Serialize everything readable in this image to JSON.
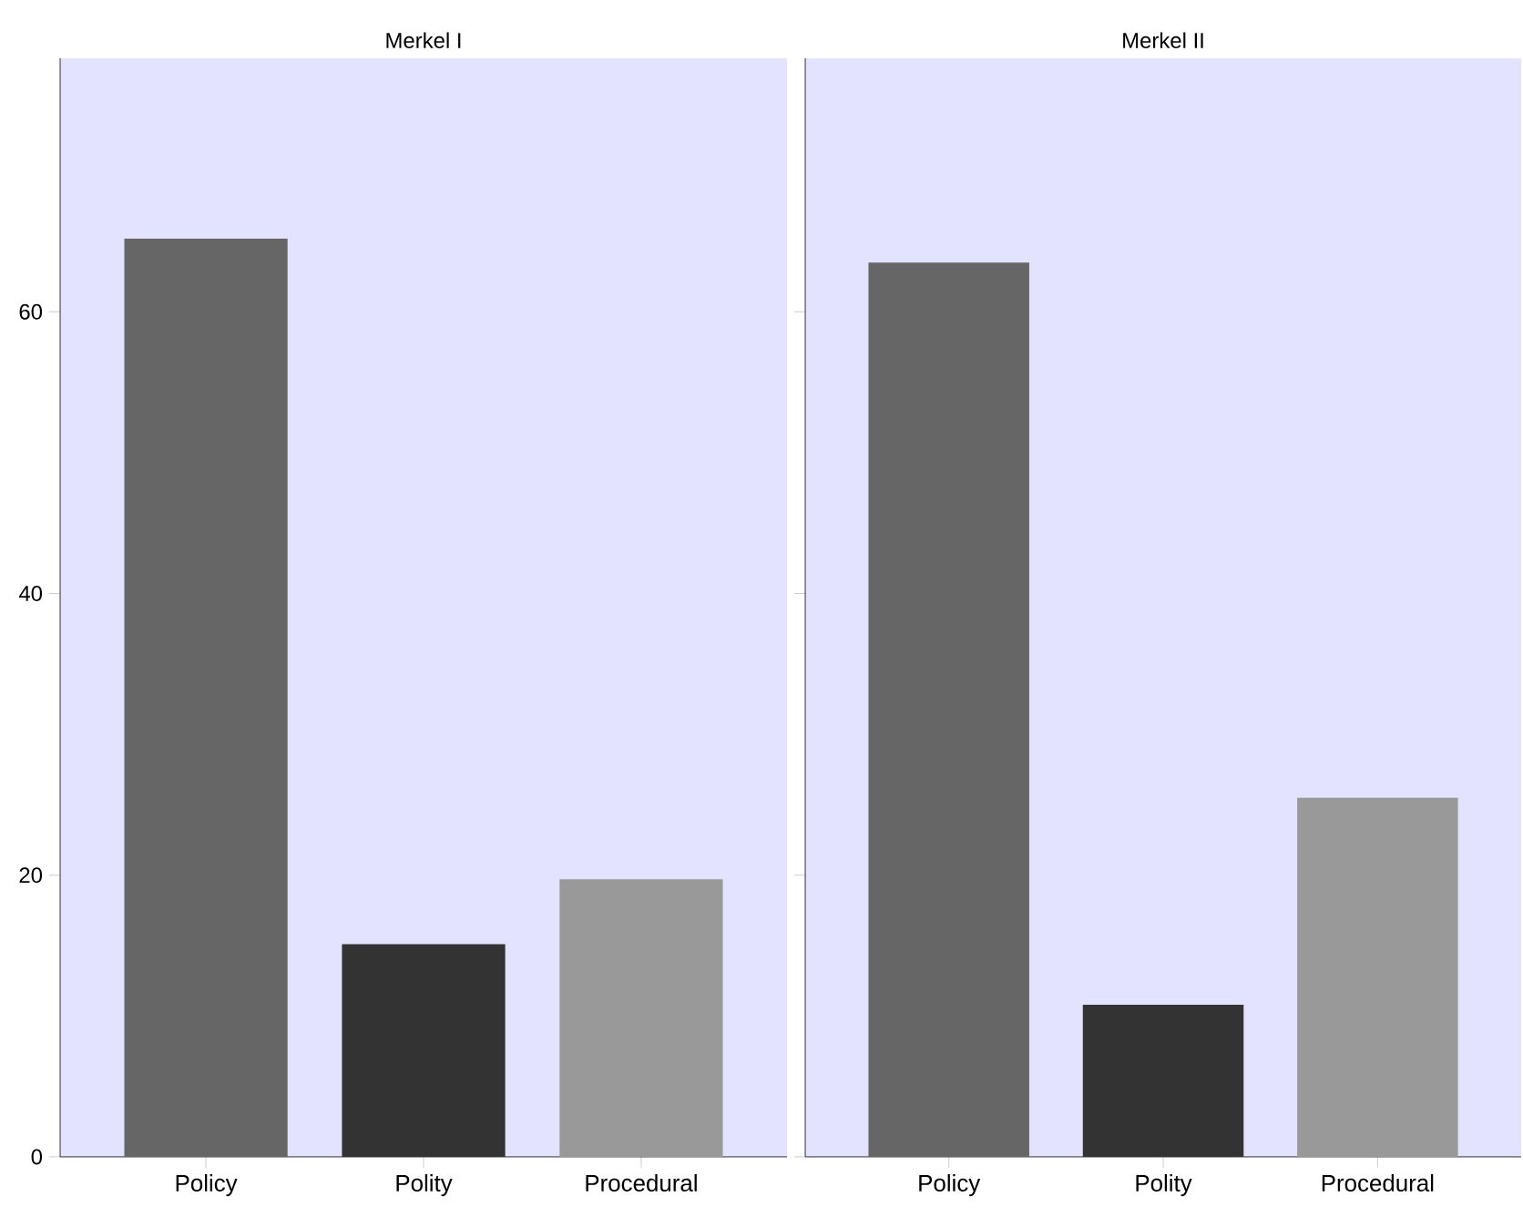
{
  "chart_data": [
    {
      "type": "bar",
      "title": "Merkel I",
      "categories": [
        "Policy",
        "Polity",
        "Procedural"
      ],
      "values": [
        65.2,
        15.1,
        19.7
      ],
      "colors": [
        "#666666",
        "#333333",
        "#999999"
      ],
      "ylim": [
        0,
        78
      ],
      "yticks": [
        0,
        20,
        40,
        60
      ],
      "grid": false
    },
    {
      "type": "bar",
      "title": "Merkel II",
      "categories": [
        "Policy",
        "Polity",
        "Procedural"
      ],
      "values": [
        63.5,
        10.8,
        25.5
      ],
      "colors": [
        "#666666",
        "#333333",
        "#999999"
      ],
      "ylim": [
        0,
        78
      ],
      "yticks": [
        0,
        20,
        40,
        60
      ],
      "grid": false,
      "tick_labels": "x"
    }
  ]
}
